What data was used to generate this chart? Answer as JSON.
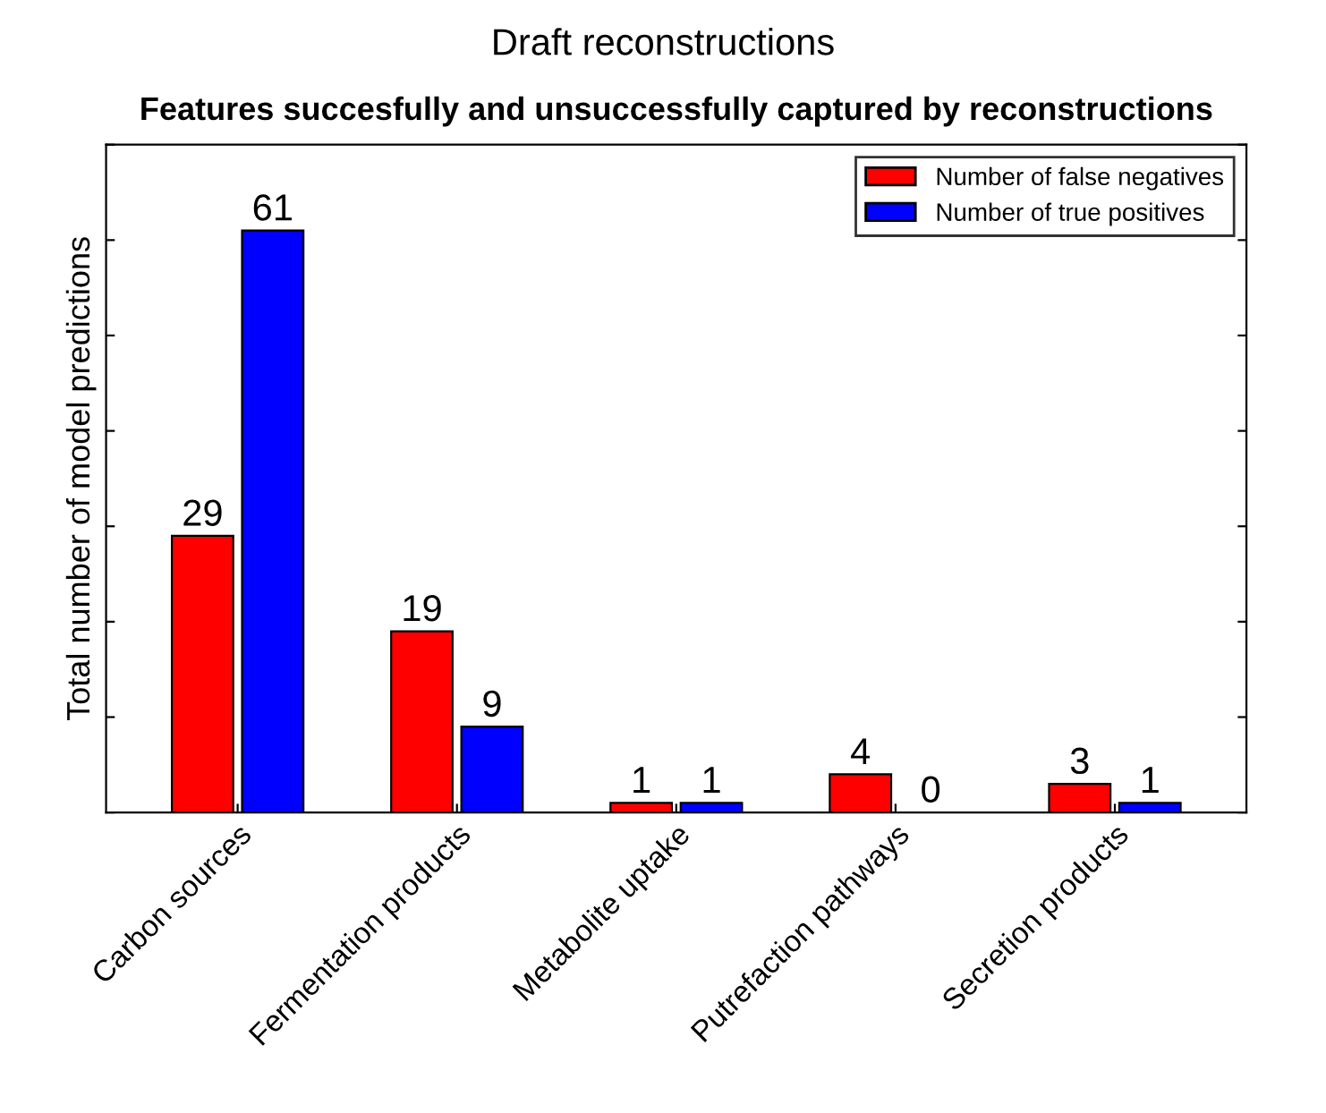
{
  "chart_data": {
    "type": "bar",
    "title": "Draft reconstructions",
    "subtitle": "Features succesfully and unsuccessfully captured by reconstructions",
    "ylabel": "Total number of model predictions",
    "categories": [
      "Carbon sources",
      "Fermentation products",
      "Metabolite uptake",
      "Putrefaction pathways",
      "Secretion products"
    ],
    "series": [
      {
        "name": "Number of false negatives",
        "color": "#ff0000",
        "values": [
          29,
          19,
          1,
          4,
          3
        ]
      },
      {
        "name": "Number of true positives",
        "color": "#0000ff",
        "values": [
          61,
          9,
          1,
          0,
          1
        ]
      }
    ],
    "ylim": [
      0,
      70
    ],
    "yticks": [
      {
        "value": 0,
        "label": null
      },
      {
        "value": 10,
        "label": null
      },
      {
        "value": 20,
        "label": null
      },
      {
        "value": 30,
        "label": null
      },
      {
        "value": 40,
        "label": null
      },
      {
        "value": 50,
        "label": null
      },
      {
        "value": 60,
        "label": null
      },
      {
        "value": 70,
        "label": null
      }
    ],
    "tick_labels": "x",
    "data_labels": true,
    "legend": "top right",
    "grid": false
  }
}
